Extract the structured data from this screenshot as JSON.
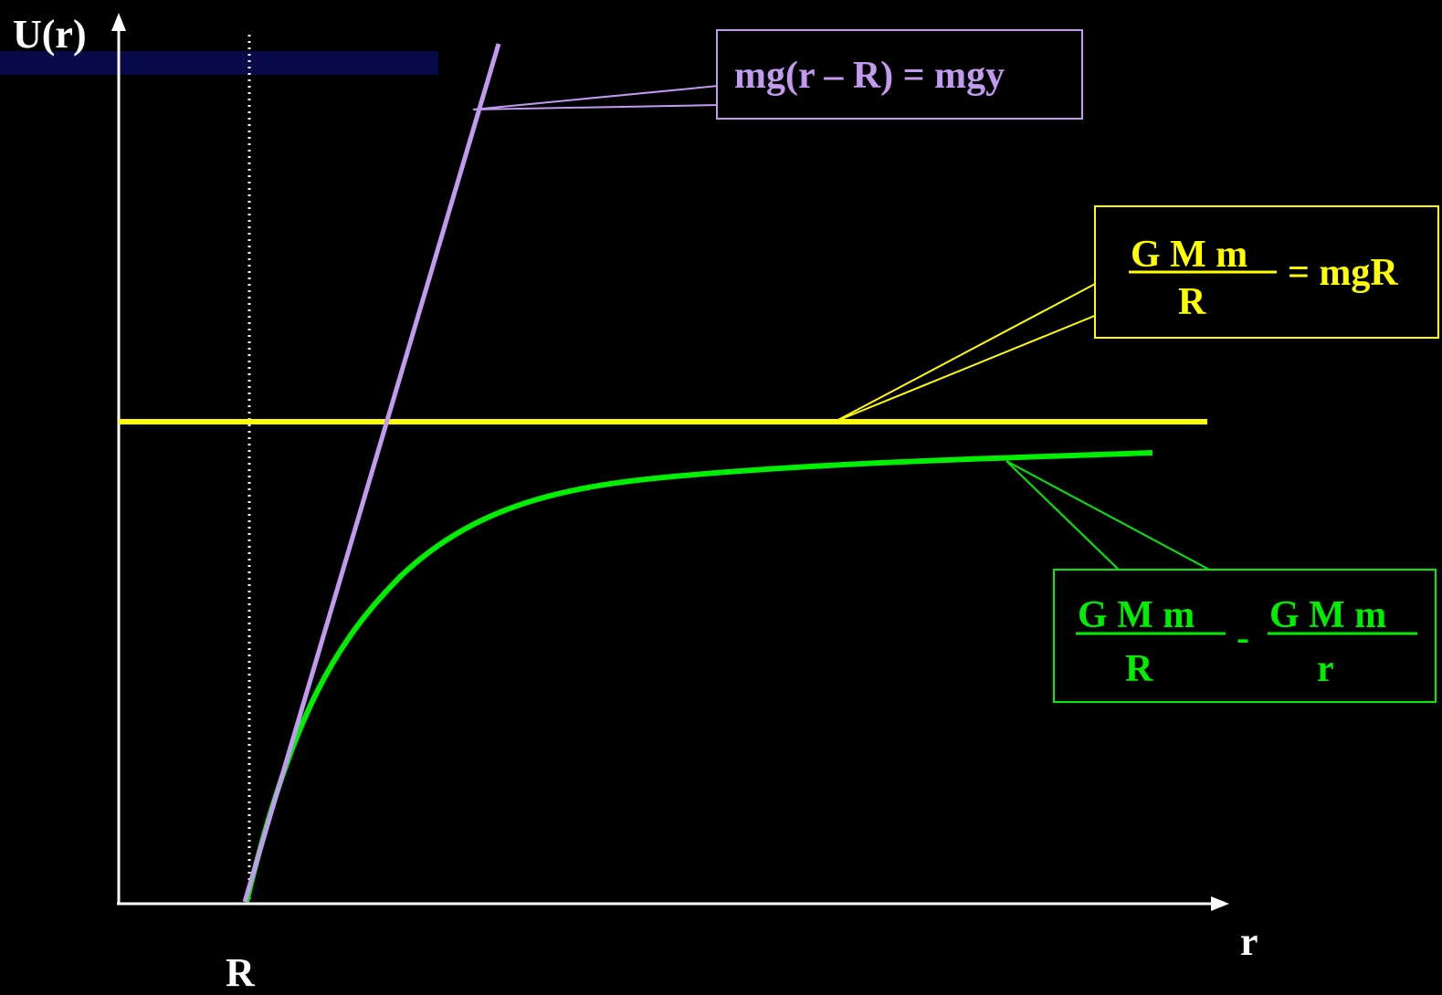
{
  "axes": {
    "y_label": "U(r)",
    "x_label": "r",
    "r_marker_label": "R"
  },
  "linear_label": {
    "text": "mg(r – R) = mgy",
    "color": "#c29af0"
  },
  "asymptote_label": {
    "numerator": "G M m",
    "denominator": "R",
    "suffix": "= mgR",
    "color": "#ffff00"
  },
  "curve_label": {
    "left_numerator": "G M m",
    "left_denominator": "R",
    "operator": "-",
    "right_numerator": "G M m",
    "right_denominator": "r",
    "color": "#00ee00"
  },
  "colors": {
    "background": "#000000",
    "axes": "#ffffff",
    "banner": "#0a0a4a"
  }
}
